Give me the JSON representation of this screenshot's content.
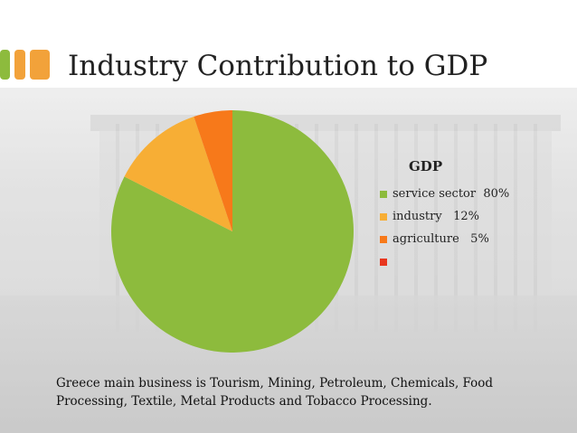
{
  "slide": {
    "title": "Industry Contribution to GDP",
    "caption": "Greece main business is Tourism, Mining, Petroleum, Chemicals, Food Processing, Textile, Metal Products and Tobacco Processing.",
    "accent_colors": [
      "#8DBB3D",
      "#F2A23A",
      "#F2A23A"
    ]
  },
  "chart_data": {
    "type": "pie",
    "title": "GDP",
    "slices": [
      {
        "label": "service sector",
        "value_label": "80%",
        "value": 80,
        "color": "#8DBB3D"
      },
      {
        "label": "industry",
        "value_label": "12%",
        "value": 12,
        "color": "#F7AE35"
      },
      {
        "label": "agriculture",
        "value_label": "5%",
        "value": 5,
        "color": "#F7791A"
      }
    ],
    "extra_legend_marker_color": "#E8361E",
    "legend_position": "right"
  }
}
